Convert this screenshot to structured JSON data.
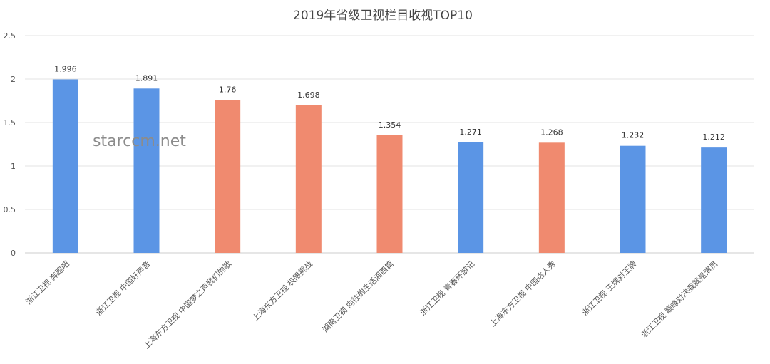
{
  "chart_data": {
    "type": "bar",
    "title": "2019年省级卫视栏目收视TOP10",
    "categories": [
      "浙江卫视 奔跑吧",
      "浙江卫视 中国好声音",
      "上海东方卫视 中国梦之声我们的歌",
      "上海东方卫视 极限挑战",
      "湖南卫视 向往的生活湘西篇",
      "浙江卫视 青春环游记",
      "上海东方卫视 中国达人秀",
      "浙江卫视 王牌对王牌",
      "浙江卫视 巅峰对决我就是演员"
    ],
    "values": [
      1.996,
      1.891,
      1.76,
      1.698,
      1.354,
      1.271,
      1.268,
      1.232,
      1.212
    ],
    "data_labels": [
      "1.996",
      "1.891",
      "1.76",
      "1.698",
      "1.354",
      "1.271",
      "1.268",
      "1.232",
      "1.212"
    ],
    "bar_colors": [
      "#5b95e5",
      "#5b95e5",
      "#f08a6f",
      "#f08a6f",
      "#f08a6f",
      "#5b95e5",
      "#f08a6f",
      "#5b95e5",
      "#5b95e5"
    ],
    "y_ticks": [
      "0",
      "0.5",
      "1",
      "1.5",
      "2",
      "2.5"
    ],
    "ylim": [
      0,
      2.5
    ],
    "grid": true,
    "legend": "none",
    "xlabel": "",
    "ylabel": ""
  },
  "watermark": {
    "text": "starccm.net"
  },
  "colors": {
    "blue": "#5b95e5",
    "orange": "#f08a6f",
    "grid": "#e3e3e3"
  }
}
